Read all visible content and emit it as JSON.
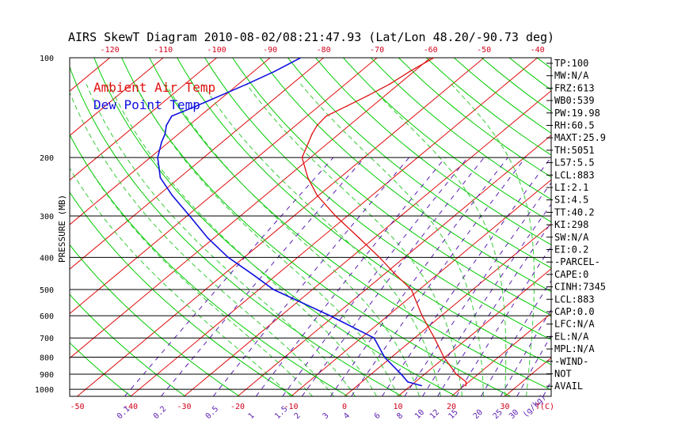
{
  "chart_data": {
    "type": "line",
    "title": "AIRS SkewT Diagram 2010-08-02/08:21:47.93 (Lat/Lon 48.20/-90.73 deg)",
    "ylabel": "PRESSURE (MB)",
    "ylim": [
      1050,
      100
    ],
    "pressure_ticks": [
      {
        "p": 100,
        "label": "100"
      },
      {
        "p": 200,
        "label": "200"
      },
      {
        "p": 300,
        "label": "300"
      },
      {
        "p": 400,
        "label": "400"
      },
      {
        "p": 500,
        "label": "500"
      },
      {
        "p": 600,
        "label": "600"
      },
      {
        "p": 700,
        "label": "700"
      },
      {
        "p": 800,
        "label": "800"
      },
      {
        "p": 900,
        "label": "900"
      },
      {
        "p": 1000,
        "label": "1000"
      }
    ],
    "top_ticks": [
      {
        "t": -120,
        "label": "-120"
      },
      {
        "t": -110,
        "label": "-110"
      },
      {
        "t": -100,
        "label": "-100"
      },
      {
        "t": -90,
        "label": "-90"
      },
      {
        "t": -80,
        "label": "-80"
      },
      {
        "t": -70,
        "label": "-70"
      },
      {
        "t": -60,
        "label": "-60"
      },
      {
        "t": -50,
        "label": "-50"
      },
      {
        "t": -40,
        "label": "-40"
      }
    ],
    "bottom_ticks": [
      {
        "t": -50,
        "label": "-50"
      },
      {
        "t": -40,
        "label": "-40"
      },
      {
        "t": -30,
        "label": "-30"
      },
      {
        "t": -20,
        "label": "-20"
      },
      {
        "t": -10,
        "label": "-10"
      },
      {
        "t": 0,
        "label": "0"
      },
      {
        "t": 10,
        "label": "10"
      },
      {
        "t": 20,
        "label": "20"
      },
      {
        "t": 30,
        "label": "30"
      }
    ],
    "bottom_unit": "T(C)",
    "mixing_ratio_unit": "(g/kg)",
    "mixing_ratio_labels": [
      "0.1",
      "0.2",
      "0.5",
      "1",
      "1.5",
      "2",
      "3",
      "4",
      "6",
      "8",
      "10",
      "12",
      "15",
      "20",
      "25",
      "30",
      "40"
    ],
    "legend": [
      "Ambient Air Temp",
      "Dew Point Temp"
    ],
    "series": [
      {
        "name": "Ambient Air Temp",
        "color": "#e01010",
        "points": [
          {
            "p": 100,
            "t": -59.4
          },
          {
            "p": 110,
            "t": -60.8
          },
          {
            "p": 120,
            "t": -61.7
          },
          {
            "p": 130,
            "t": -63.2
          },
          {
            "p": 140,
            "t": -64.8
          },
          {
            "p": 150,
            "t": -66.4
          },
          {
            "p": 160,
            "t": -66.0
          },
          {
            "p": 170,
            "t": -65.0
          },
          {
            "p": 180,
            "t": -63.8
          },
          {
            "p": 200,
            "t": -61.6
          },
          {
            "p": 230,
            "t": -56.0
          },
          {
            "p": 260,
            "t": -50.3
          },
          {
            "p": 300,
            "t": -42.2
          },
          {
            "p": 350,
            "t": -32.8
          },
          {
            "p": 400,
            "t": -24.7
          },
          {
            "p": 450,
            "t": -17.9
          },
          {
            "p": 500,
            "t": -11.5
          },
          {
            "p": 600,
            "t": -3.6
          },
          {
            "p": 700,
            "t": 3.7
          },
          {
            "p": 800,
            "t": 9.8
          },
          {
            "p": 900,
            "t": 15.9
          },
          {
            "p": 950,
            "t": 19.5
          },
          {
            "p": 975,
            "t": 20.3
          }
        ]
      },
      {
        "name": "Dew Point Temp",
        "color": "#1010e0",
        "points": [
          {
            "p": 100,
            "t": -84.3
          },
          {
            "p": 110,
            "t": -86.1
          },
          {
            "p": 120,
            "t": -88.4
          },
          {
            "p": 130,
            "t": -90.8
          },
          {
            "p": 140,
            "t": -93.0
          },
          {
            "p": 150,
            "t": -95.3
          },
          {
            "p": 160,
            "t": -94.2
          },
          {
            "p": 170,
            "t": -92.5
          },
          {
            "p": 180,
            "t": -91.3
          },
          {
            "p": 200,
            "t": -88.6
          },
          {
            "p": 230,
            "t": -83.6
          },
          {
            "p": 260,
            "t": -77.4
          },
          {
            "p": 300,
            "t": -69.5
          },
          {
            "p": 350,
            "t": -61.1
          },
          {
            "p": 400,
            "t": -53.0
          },
          {
            "p": 450,
            "t": -44.6
          },
          {
            "p": 500,
            "t": -37.3
          },
          {
            "p": 600,
            "t": -20.8
          },
          {
            "p": 700,
            "t": -7.6
          },
          {
            "p": 800,
            "t": -1.3
          },
          {
            "p": 900,
            "t": 5.6
          },
          {
            "p": 950,
            "t": 8.6
          },
          {
            "p": 975,
            "t": 12.0
          }
        ]
      }
    ],
    "indices": [
      "TP:100",
      "MW:N/A",
      "FRZ:613",
      "WB0:539",
      "PW:19.98",
      "RH:60.5",
      "MAXT:25.9",
      "TH:5051",
      "L57:5.5",
      "LCL:883",
      "LI:2.1",
      "SI:4.5",
      "TT:40.2",
      "KI:298",
      "SW:N/A",
      "EI:0.2",
      "-PARCEL-",
      "CAPE:0",
      "CINH:7345",
      "LCL:883",
      "CAP:0.0",
      "LFC:N/A",
      "EL:N/A",
      "MPL:N/A",
      "-WIND-",
      "NOT",
      "AVAIL"
    ],
    "colors": {
      "isotherm": "#e01010",
      "dry_adiabat": "#00cc00",
      "moist_adiabat": "#33cc33",
      "mixing_ratio": "#5a1fb0",
      "isobar": "#000000"
    }
  }
}
